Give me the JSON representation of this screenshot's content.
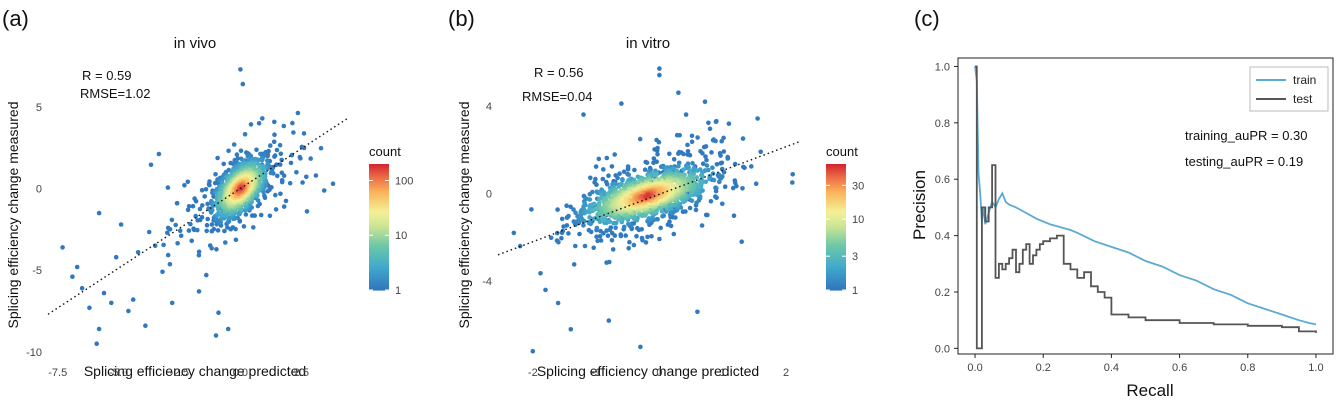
{
  "chart_data": [
    {
      "type": "scatter",
      "panel_label": "(a)",
      "title": "in vivo",
      "xlabel": "Splicing efficiency change predicted",
      "ylabel": "Splicing efficiency change measured",
      "xlim": [
        -7.9,
        4.5
      ],
      "ylim": [
        -10.5,
        8.0
      ],
      "xticks": [
        {
          "v": -7.5,
          "label": "-7.5"
        },
        {
          "v": -5.0,
          "label": "-5.0"
        },
        {
          "v": -2.5,
          "label": "-2.5"
        },
        {
          "v": 0.0,
          "label": "0.0"
        },
        {
          "v": 2.5,
          "label": "2.5"
        }
      ],
      "yticks": [
        {
          "v": 5,
          "label": "5"
        },
        {
          "v": 0,
          "label": "0"
        },
        {
          "v": -5,
          "label": "-5"
        },
        {
          "v": -10,
          "label": "-10"
        }
      ],
      "annotation_r": "R  = 0.59",
      "annotation_rmse": "RMSE=1.02",
      "fit_line": {
        "x0": -7.9,
        "y0": -7.7,
        "x1": 4.4,
        "y1": 4.3,
        "style": "dotted"
      },
      "colorbar": {
        "title": "count",
        "scale": "log",
        "min": 1,
        "max": 200,
        "ticks": [
          {
            "v": 100,
            "label": "100"
          },
          {
            "v": 10,
            "label": "10"
          },
          {
            "v": 1,
            "label": "1"
          }
        ]
      },
      "cloud": {
        "center": [
          0.0,
          0.0
        ],
        "spread": [
          0.55,
          0.9
        ],
        "corr": 0.55,
        "n": 900,
        "seed": 7,
        "outlier_n": 170,
        "outlier_spread": [
          1.9,
          2.6
        ]
      },
      "points": [
        [
          -7.3,
          -3.6
        ],
        [
          -6.9,
          -5.4
        ],
        [
          -6.5,
          -6.1
        ],
        [
          -6.2,
          -7.3
        ],
        [
          -5.9,
          -9.5
        ],
        [
          -5.8,
          -8.6
        ],
        [
          -5.8,
          -1.5
        ],
        [
          -5.3,
          -7.0
        ],
        [
          -5.6,
          -6.4
        ],
        [
          -4.9,
          -2.2
        ],
        [
          -4.6,
          -7.5
        ],
        [
          -4.4,
          -6.8
        ],
        [
          -3.9,
          -8.4
        ],
        [
          -3.5,
          -3.5
        ],
        [
          -3.2,
          -5.1
        ],
        [
          -2.8,
          -7.0
        ],
        [
          -2.6,
          -0.9
        ],
        [
          -2.3,
          0.2
        ],
        [
          -2.0,
          -3.2
        ],
        [
          -1.7,
          -6.3
        ],
        [
          -1.4,
          -5.3
        ],
        [
          -0.5,
          -8.6
        ],
        [
          -0.9,
          -7.6
        ],
        [
          0.0,
          7.3
        ],
        [
          0.1,
          6.4
        ],
        [
          0.9,
          4.3
        ],
        [
          1.4,
          3.3
        ],
        [
          3.1,
          0.8
        ],
        [
          3.8,
          0.3
        ],
        [
          2.3,
          1.0
        ],
        [
          1.8,
          -1.1
        ],
        [
          -6.7,
          -4.8
        ],
        [
          -5.1,
          -4.2
        ],
        [
          -4.2,
          -3.9
        ],
        [
          -3.0,
          -2.7
        ],
        [
          -1.0,
          -9.0
        ]
      ]
    },
    {
      "type": "scatter",
      "panel_label": "(b)",
      "title": "in vitro",
      "xlabel": "Splicing efficiency change predicted",
      "ylabel": "Splicing efficiency change measured",
      "xlim": [
        -2.55,
        2.3
      ],
      "ylim": [
        -7.6,
        6.0
      ],
      "xticks": [
        {
          "v": -2,
          "label": "-2"
        },
        {
          "v": -1,
          "label": "-1"
        },
        {
          "v": 0,
          "label": "0"
        },
        {
          "v": 1,
          "label": "1"
        },
        {
          "v": 2,
          "label": "2"
        }
      ],
      "yticks": [
        {
          "v": 4,
          "label": "4"
        },
        {
          "v": 0,
          "label": "0"
        },
        {
          "v": -4,
          "label": "-4"
        }
      ],
      "annotation_r": "R  = 0.56",
      "annotation_rmse": "RMSE=0.04",
      "fit_line": {
        "x0": -2.55,
        "y0": -2.8,
        "x1": 2.2,
        "y1": 2.35,
        "style": "dotted"
      },
      "colorbar": {
        "title": "count",
        "scale": "log",
        "min": 1,
        "max": 60,
        "ticks": [
          {
            "v": 30,
            "label": "30"
          },
          {
            "v": 10,
            "label": "10"
          },
          {
            "v": 3,
            "label": "3"
          },
          {
            "v": 1,
            "label": "1"
          }
        ]
      },
      "cloud": {
        "center": [
          -0.2,
          -0.1
        ],
        "spread": [
          0.5,
          0.65
        ],
        "corr": 0.6,
        "n": 1100,
        "seed": 11,
        "outlier_n": 260,
        "outlier_spread": [
          0.8,
          1.8
        ]
      },
      "points": [
        [
          -2.0,
          -7.2
        ],
        [
          0.0,
          5.7
        ],
        [
          0.0,
          5.4
        ],
        [
          0.3,
          4.6
        ],
        [
          -0.6,
          4.1
        ],
        [
          -1.2,
          3.6
        ],
        [
          -0.3,
          -7.0
        ],
        [
          -0.8,
          -5.8
        ],
        [
          -1.6,
          -5.0
        ],
        [
          -2.2,
          -2.4
        ],
        [
          -2.3,
          -1.8
        ],
        [
          2.1,
          0.5
        ],
        [
          1.6,
          1.9
        ],
        [
          1.3,
          -2.2
        ],
        [
          0.6,
          -5.4
        ],
        [
          -1.8,
          -4.4
        ],
        [
          -1.4,
          -6.2
        ],
        [
          0.9,
          3.3
        ]
      ]
    },
    {
      "type": "line",
      "panel_label": "(c)",
      "xlabel": "Recall",
      "ylabel": "Precision",
      "xlim": [
        -0.05,
        1.05
      ],
      "ylim": [
        -0.02,
        1.03
      ],
      "xticks": [
        {
          "v": 0.0,
          "label": "0.0"
        },
        {
          "v": 0.2,
          "label": "0.2"
        },
        {
          "v": 0.4,
          "label": "0.4"
        },
        {
          "v": 0.6,
          "label": "0.6"
        },
        {
          "v": 0.8,
          "label": "0.8"
        },
        {
          "v": 1.0,
          "label": "1.0"
        }
      ],
      "yticks": [
        {
          "v": 0.0,
          "label": "0.0"
        },
        {
          "v": 0.2,
          "label": "0.2"
        },
        {
          "v": 0.4,
          "label": "0.4"
        },
        {
          "v": 0.6,
          "label": "0.6"
        },
        {
          "v": 0.8,
          "label": "0.8"
        },
        {
          "v": 1.0,
          "label": "1.0"
        }
      ],
      "annotation_train": "training_auPR = 0.30",
      "annotation_test": "testing_auPR = 0.19",
      "legend": "top-right",
      "series": [
        {
          "name": "train",
          "color": "#5aaad6",
          "step": false,
          "x": [
            0.0,
            0.005,
            0.01,
            0.015,
            0.02,
            0.025,
            0.03,
            0.04,
            0.05,
            0.06,
            0.07,
            0.08,
            0.09,
            0.1,
            0.12,
            0.15,
            0.18,
            0.2,
            0.22,
            0.25,
            0.28,
            0.3,
            0.35,
            0.4,
            0.45,
            0.5,
            0.55,
            0.6,
            0.65,
            0.7,
            0.75,
            0.8,
            0.85,
            0.9,
            0.95,
            0.98,
            1.0
          ],
          "y": [
            1.0,
            0.95,
            0.62,
            0.55,
            0.45,
            0.5,
            0.44,
            0.48,
            0.52,
            0.5,
            0.53,
            0.55,
            0.52,
            0.51,
            0.5,
            0.48,
            0.46,
            0.45,
            0.44,
            0.43,
            0.42,
            0.41,
            0.38,
            0.36,
            0.34,
            0.31,
            0.29,
            0.26,
            0.24,
            0.21,
            0.19,
            0.16,
            0.14,
            0.12,
            0.1,
            0.09,
            0.085
          ]
        },
        {
          "name": "test",
          "color": "#555555",
          "step": true,
          "x": [
            0.0,
            0.005,
            0.01,
            0.02,
            0.03,
            0.04,
            0.05,
            0.06,
            0.07,
            0.08,
            0.09,
            0.1,
            0.11,
            0.12,
            0.13,
            0.14,
            0.15,
            0.16,
            0.17,
            0.18,
            0.19,
            0.2,
            0.22,
            0.24,
            0.26,
            0.28,
            0.3,
            0.32,
            0.34,
            0.36,
            0.38,
            0.4,
            0.45,
            0.5,
            0.6,
            0.7,
            0.8,
            0.9,
            0.95,
            1.0
          ],
          "y": [
            1.0,
            0.0,
            0.0,
            0.5,
            0.45,
            0.5,
            0.65,
            0.25,
            0.3,
            0.28,
            0.3,
            0.32,
            0.35,
            0.27,
            0.3,
            0.35,
            0.37,
            0.3,
            0.33,
            0.35,
            0.37,
            0.38,
            0.39,
            0.4,
            0.3,
            0.28,
            0.25,
            0.27,
            0.22,
            0.2,
            0.18,
            0.12,
            0.11,
            0.1,
            0.09,
            0.085,
            0.08,
            0.075,
            0.06,
            0.055
          ]
        }
      ]
    }
  ]
}
